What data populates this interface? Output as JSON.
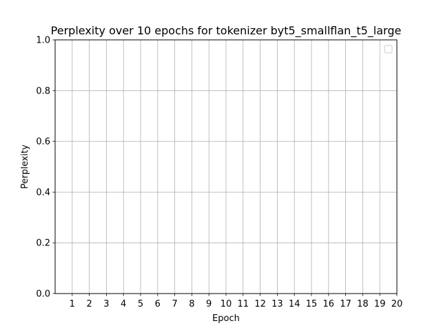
{
  "chart_data": {
    "type": "line",
    "title": "Perplexity over 10 epochs for tokenizer byt5_smallflan_t5_large",
    "xlabel": "Epoch",
    "ylabel": "Perplexity",
    "x_ticks": [
      "1",
      "2",
      "3",
      "4",
      "5",
      "6",
      "7",
      "8",
      "9",
      "10",
      "11",
      "12",
      "13",
      "14",
      "15",
      "16",
      "17",
      "18",
      "19",
      "20"
    ],
    "y_ticks": [
      "0.0",
      "0.2",
      "0.4",
      "0.6",
      "0.8",
      "1.0"
    ],
    "xlim": [
      0,
      20
    ],
    "ylim": [
      0.0,
      1.0
    ],
    "grid": true,
    "legend": "upper-right, empty",
    "series": []
  },
  "colors": {
    "grid": "#b0b0b0",
    "axes": "#000000",
    "background": "#ffffff"
  }
}
